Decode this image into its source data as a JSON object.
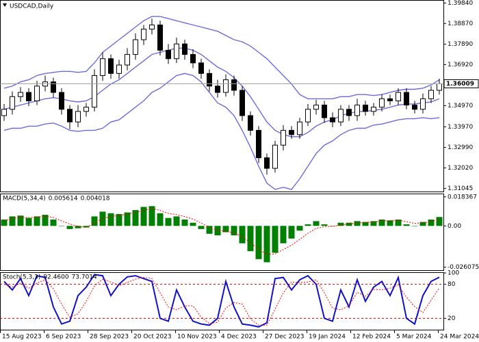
{
  "chart_data": [
    {
      "type": "candlestick",
      "title": "USDCAD,Daily",
      "x": [
        1.5,
        4.5,
        7.5,
        10.5,
        13.5,
        16.5,
        19.5,
        22.5,
        25.5,
        28.5,
        31.5,
        34.5,
        37.5,
        40.5,
        43.5,
        46.5,
        49.5,
        52.5,
        55.5,
        58.5,
        61.5,
        64.5,
        67.5,
        70.5,
        73.5,
        76.5,
        79.5,
        82.5,
        85.5,
        88.5,
        91.5,
        94.5,
        97.5,
        100.5,
        103.5,
        106.5,
        109.5,
        112.5,
        115.5,
        118.5,
        121.5,
        124.5,
        127.5,
        130.5,
        133.5,
        136.5,
        139.5,
        142.5,
        145.5,
        148.5,
        151.5,
        154.5,
        157.5,
        160.5
      ],
      "open": [
        1.345,
        1.348,
        1.354,
        1.356,
        1.352,
        1.359,
        1.361,
        1.356,
        1.348,
        1.342,
        1.347,
        1.349,
        1.364,
        1.372,
        1.365,
        1.369,
        1.374,
        1.381,
        1.386,
        1.388,
        1.376,
        1.372,
        1.379,
        1.374,
        1.37,
        1.365,
        1.359,
        1.356,
        1.362,
        1.357,
        1.345,
        1.338,
        1.325,
        1.32,
        1.331,
        1.338,
        1.336,
        1.342,
        1.348,
        1.35,
        1.344,
        1.342,
        1.348,
        1.345,
        1.35,
        1.347,
        1.349,
        1.353,
        1.352,
        1.356,
        1.35,
        1.348,
        1.353,
        1.357
      ],
      "high": [
        1.3505,
        1.3565,
        1.3585,
        1.358,
        1.3615,
        1.364,
        1.363,
        1.358,
        1.35,
        1.35,
        1.351,
        1.367,
        1.375,
        1.374,
        1.3715,
        1.377,
        1.384,
        1.388,
        1.391,
        1.39,
        1.379,
        1.382,
        1.381,
        1.3765,
        1.372,
        1.367,
        1.362,
        1.3645,
        1.364,
        1.359,
        1.347,
        1.34,
        1.327,
        1.333,
        1.3405,
        1.34,
        1.344,
        1.3505,
        1.3525,
        1.352,
        1.3465,
        1.35,
        1.35,
        1.353,
        1.352,
        1.351,
        1.355,
        1.355,
        1.358,
        1.358,
        1.352,
        1.3555,
        1.359,
        1.3625
      ],
      "low": [
        1.3425,
        1.3455,
        1.3515,
        1.3495,
        1.35,
        1.3565,
        1.3535,
        1.3455,
        1.3385,
        1.3395,
        1.3445,
        1.347,
        1.3615,
        1.3625,
        1.3625,
        1.3665,
        1.3715,
        1.3785,
        1.3835,
        1.3735,
        1.3695,
        1.37,
        1.3715,
        1.3675,
        1.3625,
        1.3565,
        1.3535,
        1.354,
        1.3545,
        1.3425,
        1.3355,
        1.3225,
        1.317,
        1.318,
        1.3285,
        1.334,
        1.334,
        1.34,
        1.3455,
        1.3415,
        1.3395,
        1.34,
        1.3425,
        1.3425,
        1.345,
        1.345,
        1.347,
        1.35,
        1.35,
        1.348,
        1.346,
        1.346,
        1.351,
        1.355
      ],
      "close": [
        1.348,
        1.354,
        1.356,
        1.352,
        1.359,
        1.361,
        1.356,
        1.348,
        1.342,
        1.347,
        1.349,
        1.364,
        1.372,
        1.365,
        1.369,
        1.374,
        1.381,
        1.386,
        1.388,
        1.376,
        1.372,
        1.379,
        1.374,
        1.37,
        1.365,
        1.359,
        1.356,
        1.362,
        1.357,
        1.345,
        1.338,
        1.325,
        1.32,
        1.331,
        1.338,
        1.336,
        1.342,
        1.348,
        1.35,
        1.344,
        1.342,
        1.348,
        1.345,
        1.35,
        1.347,
        1.349,
        1.353,
        1.352,
        1.356,
        1.35,
        1.348,
        1.353,
        1.357,
        1.3601
      ],
      "up_color": "#ffffff",
      "down_color": "#000000",
      "edge_color": "#000000",
      "bands": {
        "color": "#6a6ae0",
        "upper": [
          1.358,
          1.359,
          1.361,
          1.362,
          1.364,
          1.365,
          1.3655,
          1.366,
          1.366,
          1.3655,
          1.366,
          1.37,
          1.375,
          1.378,
          1.381,
          1.384,
          1.387,
          1.39,
          1.392,
          1.392,
          1.391,
          1.39,
          1.389,
          1.388,
          1.387,
          1.386,
          1.385,
          1.383,
          1.381,
          1.38,
          1.378,
          1.375,
          1.372,
          1.368,
          1.364,
          1.36,
          1.355,
          1.353,
          1.353,
          1.353,
          1.353,
          1.354,
          1.354,
          1.355,
          1.355,
          1.3545,
          1.355,
          1.356,
          1.357,
          1.3575,
          1.3575,
          1.358,
          1.3595,
          1.362
        ],
        "middle": [
          1.348,
          1.349,
          1.35,
          1.351,
          1.352,
          1.353,
          1.3535,
          1.353,
          1.352,
          1.3515,
          1.352,
          1.354,
          1.357,
          1.36,
          1.362,
          1.365,
          1.368,
          1.371,
          1.374,
          1.375,
          1.376,
          1.377,
          1.377,
          1.376,
          1.374,
          1.371,
          1.368,
          1.366,
          1.363,
          1.359,
          1.354,
          1.348,
          1.342,
          1.338,
          1.336,
          1.335,
          1.335,
          1.337,
          1.34,
          1.342,
          1.343,
          1.345,
          1.346,
          1.347,
          1.347,
          1.3475,
          1.348,
          1.349,
          1.35,
          1.3505,
          1.3505,
          1.351,
          1.3515,
          1.353
        ],
        "lower": [
          1.338,
          1.339,
          1.339,
          1.34,
          1.34,
          1.341,
          1.3415,
          1.34,
          1.338,
          1.3375,
          1.338,
          1.338,
          1.339,
          1.342,
          1.343,
          1.346,
          1.349,
          1.352,
          1.356,
          1.358,
          1.361,
          1.364,
          1.365,
          1.364,
          1.361,
          1.356,
          1.351,
          1.349,
          1.345,
          1.338,
          1.33,
          1.321,
          1.313,
          1.31,
          1.311,
          1.31,
          1.315,
          1.321,
          1.327,
          1.331,
          1.333,
          1.336,
          1.338,
          1.339,
          1.339,
          1.3405,
          1.341,
          1.342,
          1.343,
          1.3435,
          1.3435,
          1.344,
          1.3435,
          1.344
        ]
      },
      "last_price": 1.36009,
      "xlim": [
        0,
        162
      ],
      "ylim": [
        1.309,
        1.3995
      ],
      "yticks": [
        {
          "value": 1.3984,
          "label": "1.39840"
        },
        {
          "value": 1.3887,
          "label": "1.38870"
        },
        {
          "value": 1.3789,
          "label": "1.37890"
        },
        {
          "value": 1.3692,
          "label": "1.36920"
        },
        {
          "value": 1.3497,
          "label": "1.34970"
        },
        {
          "value": 1.3397,
          "label": "1.33970"
        },
        {
          "value": 1.3299,
          "label": "1.32990"
        },
        {
          "value": 1.3202,
          "label": "1.32020"
        },
        1.31045
      ]
    },
    {
      "type": "bar",
      "title": "MACD(5,34,4)",
      "x": [
        1.5,
        4.5,
        7.5,
        10.5,
        13.5,
        16.5,
        19.5,
        22.5,
        25.5,
        28.5,
        31.5,
        34.5,
        37.5,
        40.5,
        43.5,
        46.5,
        49.5,
        52.5,
        55.5,
        58.5,
        61.5,
        64.5,
        67.5,
        70.5,
        73.5,
        76.5,
        79.5,
        82.5,
        85.5,
        88.5,
        91.5,
        94.5,
        97.5,
        100.5,
        103.5,
        106.5,
        109.5,
        112.5,
        115.5,
        118.5,
        121.5,
        124.5,
        127.5,
        130.5,
        133.5,
        136.5,
        139.5,
        142.5,
        145.5,
        148.5,
        151.5,
        154.5,
        157.5,
        160.5
      ],
      "series": [
        {
          "style": "histogram",
          "color": "#008000",
          "values": [
            0.004,
            0.006,
            0.0065,
            0.005,
            0.006,
            0.007,
            0.004,
            0,
            -0.002,
            -0.0015,
            -0.001,
            0.006,
            0.009,
            0.008,
            0.0075,
            0.0085,
            0.01,
            0.012,
            0.0125,
            0.008,
            0.005,
            0.006,
            0.004,
            0.002,
            -0.002,
            -0.005,
            -0.006,
            -0.004,
            -0.006,
            -0.011,
            -0.016,
            -0.021,
            -0.023,
            -0.017,
            -0.011,
            -0.008,
            -0.003,
            0.001,
            0.003,
            0.001,
            0,
            0.002,
            0.002,
            0.003,
            0.0025,
            0.003,
            0.004,
            0.0035,
            0.004,
            0.001,
            0,
            0.0025,
            0.004,
            0.005614
          ]
        },
        {
          "style": "dotted",
          "color": "#ff0000",
          "values": [
            0.0035,
            0.0045,
            0.0055,
            0.0052,
            0.0056,
            0.0062,
            0.0053,
            0.0032,
            0.0011,
            -0.0002,
            -0.001,
            0.0018,
            0.0047,
            0.006,
            0.0066,
            0.0074,
            0.0085,
            0.0099,
            0.011,
            0.0098,
            0.0079,
            0.0071,
            0.0059,
            0.0043,
            0.0018,
            -0.0009,
            -0.0029,
            -0.0033,
            -0.0044,
            -0.007,
            -0.0106,
            -0.0148,
            -0.0181,
            -0.0177,
            -0.015,
            -0.0122,
            -0.0085,
            -0.0047,
            -0.0016,
            -0.0005,
            -0.0003,
            0.0006,
            0.0012,
            0.0019,
            0.0021,
            0.0025,
            0.0031,
            0.0033,
            0.0036,
            0.0026,
            0.0016,
            0.0019,
            0.0028,
            0.004018
          ]
        }
      ],
      "xlim": [
        0,
        162
      ],
      "ylim": [
        -0.028,
        0.02
      ],
      "yticks": [
        0.018367,
        {
          "value": 0,
          "label": "0.00"
        },
        -0.026075
      ]
    },
    {
      "type": "line",
      "title": "Stoch(5,3,3)",
      "x": [
        1.5,
        4.5,
        7.5,
        10.5,
        13.5,
        16.5,
        19.5,
        22.5,
        25.5,
        28.5,
        31.5,
        34.5,
        37.5,
        40.5,
        43.5,
        46.5,
        49.5,
        52.5,
        55.5,
        58.5,
        61.5,
        64.5,
        67.5,
        70.5,
        73.5,
        76.5,
        79.5,
        82.5,
        85.5,
        88.5,
        91.5,
        94.5,
        97.5,
        100.5,
        103.5,
        106.5,
        109.5,
        112.5,
        115.5,
        118.5,
        121.5,
        124.5,
        127.5,
        130.5,
        133.5,
        136.5,
        139.5,
        142.5,
        145.5,
        148.5,
        151.5,
        154.5,
        157.5,
        160.5
      ],
      "series": [
        {
          "style": "solid",
          "color": "#1010c8",
          "values": [
            85,
            70,
            90,
            60,
            95,
            92,
            40,
            10,
            15,
            60,
            75,
            97,
            95,
            60,
            80,
            93,
            95,
            90,
            85,
            20,
            15,
            70,
            40,
            15,
            10,
            8,
            20,
            85,
            40,
            10,
            8,
            5,
            12,
            90,
            92,
            70,
            88,
            95,
            80,
            20,
            15,
            70,
            40,
            88,
            50,
            75,
            85,
            60,
            92,
            20,
            10,
            60,
            85,
            92.46
          ],
          "value_labels": [
            null,
            null,
            null,
            null,
            null,
            null,
            null,
            null,
            null,
            null,
            null,
            null,
            null,
            null,
            null,
            null,
            null,
            null,
            null,
            null,
            null,
            null,
            null,
            null,
            null,
            null,
            null,
            null,
            null,
            null,
            null,
            null,
            null,
            null,
            null,
            null,
            null,
            null,
            null,
            null,
            null,
            null,
            null,
            null,
            null,
            null,
            null,
            null,
            null,
            null,
            null,
            null,
            null,
            "92.4600"
          ]
        },
        {
          "style": "dotted",
          "color": "#ff0000",
          "values": [
            80,
            75,
            82,
            73,
            82,
            88,
            72,
            45,
            22,
            28,
            50,
            77,
            89,
            84,
            78,
            83,
            89,
            92,
            90,
            65,
            40,
            35,
            42,
            42,
            22,
            11,
            13,
            38,
            48,
            45,
            19,
            8,
            8,
            36,
            65,
            84,
            83,
            84,
            88,
            65,
            38,
            35,
            42,
            66,
            59,
            71,
            70,
            73,
            79,
            57,
            41,
            30,
            52,
            73.7014
          ],
          "value_labels": [
            null,
            null,
            null,
            null,
            null,
            null,
            null,
            null,
            null,
            null,
            null,
            null,
            null,
            null,
            null,
            null,
            null,
            null,
            null,
            null,
            null,
            null,
            null,
            null,
            null,
            null,
            null,
            null,
            null,
            null,
            null,
            null,
            null,
            null,
            null,
            null,
            null,
            null,
            null,
            null,
            null,
            null,
            null,
            null,
            null,
            null,
            null,
            null,
            null,
            null,
            null,
            null,
            null,
            "73.7014"
          ]
        }
      ],
      "levels": [
        80,
        20
      ],
      "level_color": "#c00000",
      "xlim": [
        0,
        162
      ],
      "ylim": [
        0,
        100
      ],
      "yticks": [
        100,
        80,
        20
      ],
      "xticks": [
        {
          "value": 0,
          "label": "15 Aug 2023"
        },
        {
          "value": 16,
          "label": "6 Sep 2023"
        },
        {
          "value": 32,
          "label": "28 Sep 2023"
        },
        {
          "value": 48,
          "label": "20 Oct 2023"
        },
        {
          "value": 64,
          "label": "10 Nov 2023"
        },
        {
          "value": 80,
          "label": "4 Dec 2023"
        },
        {
          "value": 96,
          "label": "27 Dec 2023"
        },
        {
          "value": 112,
          "label": "19 Jan 2024"
        },
        {
          "value": 128,
          "label": "12 Feb 2024"
        },
        {
          "value": 144,
          "label": "5 Mar 2024"
        },
        {
          "value": 160,
          "label": "24 Mar 2024"
        }
      ]
    }
  ]
}
